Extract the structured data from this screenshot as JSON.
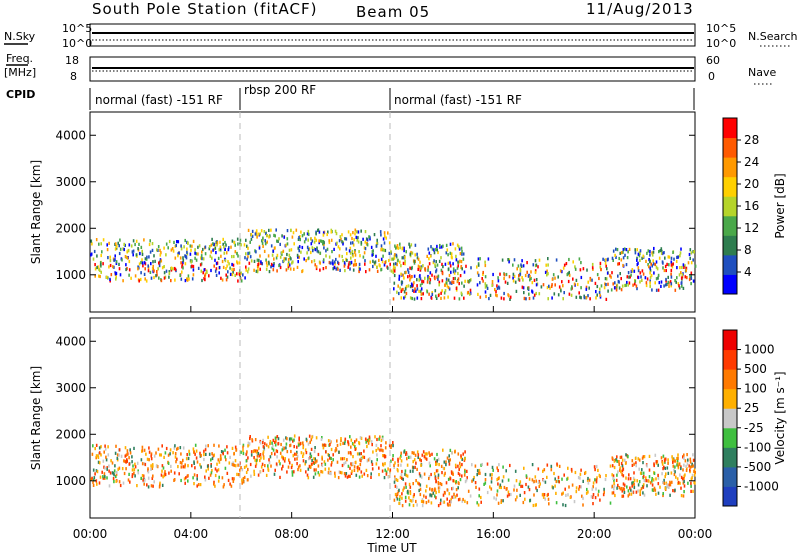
{
  "header": {
    "station": "South Pole Station (fitACF)",
    "beam": "Beam 05",
    "date": "11/Aug/2013"
  },
  "top_panels": {
    "nsky_label": "N.Sky",
    "nsearch_label": "N.Search",
    "nsky_ticks": [
      "10^5",
      "10^0"
    ],
    "nsearch_ticks": [
      "10^5",
      "10^0"
    ],
    "freq_label": "Freq.",
    "freq_unit": "[MHz]",
    "freq_ticks": [
      "18",
      "8"
    ],
    "nave_label": "Nave",
    "nave_ticks": [
      "60",
      "0"
    ],
    "cpid_label": "CPID",
    "cpid_segments": [
      {
        "label": "normal (fast) -151 RF",
        "start_h": 0,
        "end_h": 6
      },
      {
        "label": "rbsp 200 RF",
        "start_h": 6,
        "end_h": 12
      },
      {
        "label": "normal (fast) -151 RF",
        "start_h": 12,
        "end_h": 24
      }
    ]
  },
  "colors": {
    "power_scale": [
      "#0000ff",
      "#1f4fbf",
      "#2e7d4f",
      "#4aa84a",
      "#b5d42a",
      "#ffd000",
      "#ff9900",
      "#ff5a00",
      "#ff0000"
    ],
    "velocity_scale": [
      "#1f3fbf",
      "#2a5fa8",
      "#2f7f5f",
      "#3fbf3f",
      "#c8c8c8",
      "#ffb000",
      "#ff7a00",
      "#ff3a00",
      "#ee0000"
    ]
  },
  "chart_data": [
    {
      "type": "heatmap",
      "panel": "power",
      "ylabel": "Slant Range [km]",
      "colorbar_label": "Power [dB]",
      "colorbar_ticks": [
        "28",
        "24",
        "20",
        "16",
        "12",
        "8",
        "4"
      ],
      "y_ticks": [
        "4000",
        "3000",
        "2000",
        "1000"
      ],
      "ylim": [
        200,
        4500
      ],
      "xlim": [
        0,
        24
      ],
      "x_ticks": [
        "00:00",
        "04:00",
        "08:00",
        "12:00",
        "16:00",
        "20:00",
        "00:00"
      ],
      "xlabel": "Time UT"
    },
    {
      "type": "heatmap",
      "panel": "velocity",
      "ylabel": "Slant Range [km]",
      "colorbar_label": "Velocity [m s⁻¹]",
      "colorbar_ticks": [
        "1000",
        "500",
        "100",
        "25",
        "-25",
        "-100",
        "-500",
        "-1000"
      ],
      "y_ticks": [
        "4000",
        "3000",
        "2000",
        "1000"
      ],
      "ylim": [
        200,
        4500
      ],
      "xlim": [
        0,
        24
      ],
      "x_ticks": [
        "00:00",
        "04:00",
        "08:00",
        "12:00",
        "16:00",
        "20:00",
        "00:00"
      ],
      "xlabel": "Time UT"
    }
  ]
}
